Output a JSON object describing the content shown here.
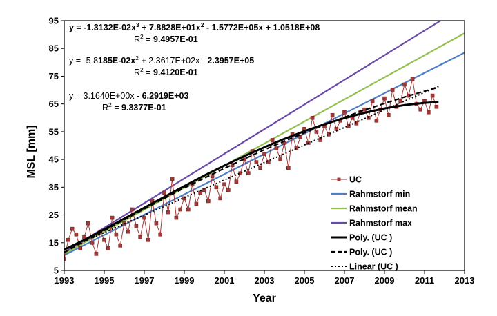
{
  "chart_data": {
    "type": "line",
    "title": "",
    "xlabel": "Year",
    "ylabel": "MSL [mm]",
    "xlim": [
      1993,
      2013
    ],
    "ylim": [
      5,
      95
    ],
    "xticks": [
      1993,
      1995,
      1997,
      1999,
      2001,
      2003,
      2005,
      2007,
      2009,
      2011,
      2013
    ],
    "yticks": [
      5,
      15,
      25,
      35,
      45,
      55,
      65,
      75,
      85,
      95
    ],
    "grid": false,
    "legend_position": "bottom-right",
    "colors": {
      "uc": "#a33a3a",
      "rahmstorf_min": "#4f7fc2",
      "rahmstorf_mean": "#92bf4f",
      "rahmstorf_max": "#6a4aa8",
      "poly3": "#000000",
      "poly2": "#000000",
      "linear": "#000000"
    },
    "equations": [
      {
        "parts": [
          {
            "t": "y = ",
            "b": true
          },
          {
            "t": "-1.3132E-02x",
            "b": true
          },
          {
            "t": "3",
            "sup": true,
            "b": true
          },
          {
            "t": " + ",
            "b": true
          },
          {
            "t": "7.8828E+01x",
            "b": true
          },
          {
            "t": "2",
            "sup": true,
            "b": true
          },
          {
            "t": " - ",
            "b": true
          },
          {
            "t": "1.5772E+05x",
            "b": true
          },
          {
            "t": " + ",
            "b": true
          },
          {
            "t": "1.0518E+08",
            "b": true
          }
        ],
        "r2_prefix": "R",
        "r2_sup": "2",
        "r2_eq": " = ",
        "r2_value": "9.4957E-01"
      },
      {
        "parts": [
          {
            "t": "y = -5.8"
          },
          {
            "t": "185E-02x",
            "b": true
          },
          {
            "t": "2",
            "sup": true
          },
          {
            "t": " + 2.3617E+02x - "
          },
          {
            "t": "2.3957E+05",
            "b": true
          }
        ],
        "r2_prefix": "R",
        "r2_sup": "2",
        "r2_eq": " = ",
        "r2_value": "9.4120E-01"
      },
      {
        "parts": [
          {
            "t": "y = 3.1640E+00x - "
          },
          {
            "t": "6.2919E+03",
            "b": true
          }
        ],
        "r2_prefix": "R",
        "r2_sup": "2",
        "r2_eq": " = ",
        "r2_value": "9.3377E-01"
      }
    ],
    "series": [
      {
        "name": "UC",
        "style": "line-marker",
        "x": [
          1993.0,
          1993.2,
          1993.4,
          1993.6,
          1993.8,
          1994.0,
          1994.2,
          1994.4,
          1994.6,
          1994.8,
          1995.0,
          1995.2,
          1995.4,
          1995.6,
          1995.8,
          1996.0,
          1996.2,
          1996.4,
          1996.6,
          1996.8,
          1997.0,
          1997.2,
          1997.4,
          1997.6,
          1997.8,
          1998.0,
          1998.2,
          1998.4,
          1998.6,
          1998.8,
          1999.0,
          1999.2,
          1999.4,
          1999.6,
          1999.8,
          2000.0,
          2000.2,
          2000.4,
          2000.6,
          2000.8,
          2001.0,
          2001.2,
          2001.4,
          2001.6,
          2001.8,
          2002.0,
          2002.2,
          2002.4,
          2002.6,
          2002.8,
          2003.0,
          2003.2,
          2003.4,
          2003.6,
          2003.8,
          2004.0,
          2004.2,
          2004.4,
          2004.6,
          2004.8,
          2005.0,
          2005.2,
          2005.4,
          2005.6,
          2005.8,
          2006.0,
          2006.2,
          2006.4,
          2006.6,
          2006.8,
          2007.0,
          2007.2,
          2007.4,
          2007.6,
          2007.8,
          2008.0,
          2008.2,
          2008.4,
          2008.6,
          2008.8,
          2009.0,
          2009.2,
          2009.4,
          2009.6,
          2009.8,
          2010.0,
          2010.2,
          2010.4,
          2010.6,
          2010.8,
          2011.0,
          2011.2,
          2011.4,
          2011.6
        ],
        "values": [
          9,
          16,
          20,
          18,
          13,
          17,
          22,
          15,
          11,
          19,
          16,
          13,
          24,
          18,
          14,
          22,
          19,
          27,
          21,
          17,
          24,
          16,
          30,
          22,
          18,
          33,
          26,
          38,
          24,
          27,
          31,
          27,
          36,
          29,
          33,
          34,
          30,
          39,
          35,
          31,
          36,
          34,
          43,
          37,
          40,
          45,
          40,
          48,
          44,
          42,
          47,
          44,
          52,
          49,
          45,
          51,
          42,
          54,
          49,
          53,
          56,
          51,
          60,
          55,
          52,
          57,
          54,
          61,
          56,
          59,
          62,
          57,
          60,
          58,
          62,
          63,
          60,
          66,
          59,
          63,
          67,
          61,
          70,
          64,
          66,
          72,
          68,
          74,
          65,
          63,
          66,
          62,
          68,
          64
        ]
      },
      {
        "name": "Rahmstorf min",
        "style": "line",
        "x": [
          1993,
          2013
        ],
        "values": [
          10.5,
          83.5
        ]
      },
      {
        "name": "Rahmstorf mean",
        "style": "line",
        "x": [
          1993,
          2013
        ],
        "values": [
          11,
          90.5
        ]
      },
      {
        "name": "Rahmstorf max",
        "style": "line",
        "x": [
          1993,
          2011.8
        ],
        "values": [
          11.5,
          95
        ]
      },
      {
        "name": "Poly. (UC )",
        "style": "solid-thick",
        "x": [
          1993,
          1994,
          1995,
          1996,
          1997,
          1998,
          1999,
          2000,
          2001,
          2002,
          2003,
          2004,
          2005,
          2006,
          2007,
          2008,
          2009,
          2010,
          2011,
          2011.7
        ],
        "values": [
          12.5,
          16,
          19.8,
          23.7,
          27.6,
          31.5,
          35.4,
          39.2,
          42.8,
          46.2,
          49.4,
          52.4,
          55.2,
          57.7,
          59.9,
          61.8,
          63.4,
          64.6,
          65.4,
          65.7
        ]
      },
      {
        "name": "Poly. (UC )",
        "style": "dashed",
        "x": [
          1993,
          1994,
          1995,
          1996,
          1997,
          1998,
          1999,
          2000,
          2001,
          2002,
          2003,
          2004,
          2005,
          2006,
          2007,
          2008,
          2009,
          2010,
          2011,
          2011.7
        ],
        "values": [
          11.5,
          15.5,
          19.4,
          23.3,
          27.2,
          31,
          34.7,
          38.3,
          41.8,
          45.2,
          48.5,
          51.6,
          54.6,
          57.5,
          60.2,
          62.8,
          65.2,
          67.5,
          69.6,
          71
        ]
      },
      {
        "name": "Linear (UC )",
        "style": "dotted",
        "x": [
          1993,
          2011.7
        ],
        "values": [
          12.3,
          71.4
        ]
      }
    ]
  }
}
